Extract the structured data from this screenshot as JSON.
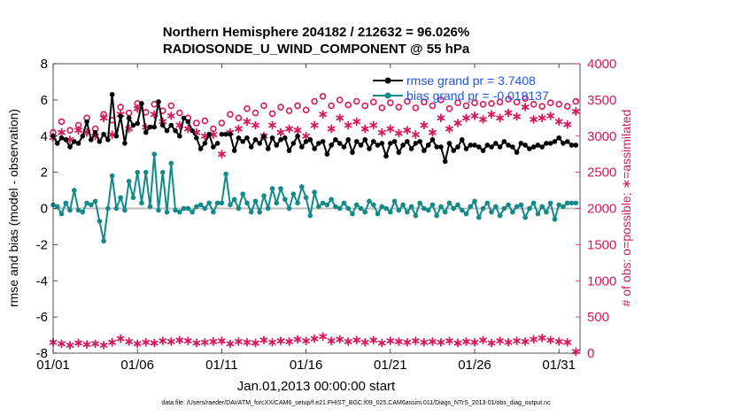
{
  "chart_data": {
    "type": "line",
    "title": "Northern Hemisphere 204182 / 212632 = 96.026%",
    "subtitle": "RADIOSONDE_U_WIND_COMPONENT @ 55 hPa",
    "xlabel": "Jan.01,2013 00:00:00 start",
    "ylabel": "rmse and bias (model - observation)",
    "y2label": "# of obs: o=possible; ∗=assimilated",
    "footer": "data file: /Users/raeder/DAI/ATM_forcXX/CAM6_setup/f.e21.FHIST_BGC.f09_025.CAM6assim.011/Diags_NTrS_2013-01/obs_diag_output.nc",
    "xlim": [
      0,
      31.25
    ],
    "ylim": [
      -8,
      8
    ],
    "y2lim": [
      0,
      4000
    ],
    "xticks": [
      0,
      5,
      10,
      15,
      20,
      25,
      30
    ],
    "xtick_labels": [
      "01/01",
      "01/06",
      "01/11",
      "01/16",
      "01/21",
      "01/26",
      "01/31"
    ],
    "yticks": [
      -8,
      -6,
      -4,
      -2,
      0,
      2,
      4,
      6,
      8
    ],
    "ytick_labels": [
      "-8",
      "-6",
      "-4",
      "-2",
      "0",
      "2",
      "4",
      "6",
      "8"
    ],
    "y2ticks": [
      0,
      500,
      1000,
      1500,
      2000,
      2500,
      3000,
      3500,
      4000
    ],
    "y2tick_labels": [
      "0",
      "500",
      "1000",
      "1500",
      "2000",
      "2500",
      "3000",
      "3500",
      "4000"
    ],
    "legend": [
      "rmse grand pr = 3.7408",
      "bias grand pr = -0.019137"
    ],
    "legend_position": "top-right",
    "colors": {
      "rmse": "#000000",
      "bias": "#138a8a",
      "obs": "#d6185f",
      "zero_line": "#bdbdbd",
      "legend_text": "#1f56e6"
    },
    "series": [
      {
        "name": "rmse",
        "segments": [
          {
            "x": [
              0,
              0.25,
              0.5,
              0.75,
              1,
              1.25,
              1.5,
              1.75,
              2,
              2.25,
              2.5,
              2.75,
              3,
              3.25,
              3.5,
              3.75,
              4,
              4.25,
              4.5,
              4.75,
              5,
              5.25,
              5.5,
              5.75,
              6,
              6.25,
              6.5,
              6.75,
              7,
              7.25,
              7.5,
              7.75,
              8,
              8.25,
              8.5,
              8.75,
              9,
              9.25,
              9.5,
              9.75
            ],
            "values": [
              4.0,
              3.6,
              3.9,
              3.8,
              3.4,
              3.7,
              3.6,
              4.0,
              4.8,
              3.8,
              4.2,
              3.7,
              4.1,
              3.8,
              6.3,
              4.0,
              5.1,
              3.6,
              5.0,
              4.6,
              4.7,
              5.8,
              4.2,
              4.5,
              4.5,
              5.9,
              4.6,
              4.3,
              4.6,
              4.3,
              4.0,
              5.0,
              4.8,
              4.3,
              3.9,
              3.3,
              3.6,
              4.1,
              3.4,
              3.6
            ]
          },
          {
            "x": [
              10,
              10.25,
              10.5,
              10.75,
              11,
              11.25,
              11.5,
              11.75,
              12,
              12.25,
              12.5,
              12.75,
              13,
              13.25,
              13.5,
              13.75,
              14,
              14.25,
              14.5,
              14.75,
              15,
              15.25,
              15.5,
              15.75,
              16,
              16.25,
              16.5,
              16.75,
              17,
              17.25,
              17.5,
              17.75,
              18,
              18.25,
              18.5,
              18.75,
              19,
              19.25,
              19.5,
              19.75,
              20,
              20.25,
              20.5,
              20.75,
              21,
              21.25,
              21.5,
              21.75,
              22,
              22.25,
              22.5,
              22.75,
              23,
              23.25,
              23.5,
              23.75,
              24,
              24.25,
              24.5,
              24.75,
              25,
              25.25,
              25.5,
              25.75,
              26,
              26.25,
              26.5,
              26.75,
              27,
              27.25,
              27.5,
              27.75,
              28,
              28.25,
              28.5,
              28.75,
              29,
              29.25,
              29.5,
              29.75,
              30,
              30.25,
              30.5,
              30.75,
              31
            ],
            "values": [
              4.1,
              4.1,
              4.1,
              3.2,
              3.9,
              3.7,
              3.9,
              3.4,
              3.8,
              3.6,
              4.0,
              3.3,
              3.9,
              3.5,
              3.8,
              3.9,
              3.2,
              3.6,
              4.0,
              3.4,
              3.7,
              3.8,
              3.3,
              3.6,
              3.7,
              3.0,
              3.5,
              3.8,
              3.6,
              3.4,
              3.8,
              3.1,
              3.7,
              3.5,
              3.8,
              3.3,
              3.7,
              3.5,
              3.6,
              2.9,
              3.6,
              3.7,
              3.1,
              3.5,
              3.7,
              3.3,
              3.6,
              3.7,
              3.2,
              3.5,
              3.8,
              3.4,
              3.4,
              2.6,
              3.6,
              3.2,
              3.4,
              3.8,
              3.3,
              3.5,
              3.5,
              3.4,
              3.2,
              3.5,
              3.4,
              3.6,
              3.4,
              3.7,
              3.5,
              3.4,
              3.1,
              3.6,
              3.5,
              3.3,
              3.4,
              3.5,
              3.4,
              3.6,
              3.6,
              3.7,
              3.9,
              3.6,
              3.7,
              3.5,
              3.5
            ]
          }
        ]
      },
      {
        "name": "bias",
        "segments": [
          {
            "x": [
              0,
              0.25,
              0.5,
              0.75,
              1,
              1.25,
              1.5,
              1.75,
              2,
              2.25,
              2.5,
              2.75,
              3,
              3.25,
              3.5,
              3.75,
              4,
              4.25,
              4.5,
              4.75,
              5,
              5.25,
              5.5,
              5.75,
              6,
              6.25,
              6.5,
              6.75,
              7,
              7.25,
              7.5,
              7.75,
              8,
              8.25,
              8.5,
              8.75,
              9,
              9.25,
              9.5,
              9.75
            ],
            "values": [
              0.2,
              0.1,
              -0.3,
              0.3,
              -0.1,
              1.0,
              -0.1,
              -0.2,
              0.3,
              0.2,
              0.4,
              -0.7,
              -1.8,
              0.0,
              1.8,
              0.0,
              0.6,
              -0.1,
              1.5,
              0.6,
              2.0,
              0.3,
              2.0,
              0.1,
              3.0,
              -0.1,
              2.0,
              -0.2,
              2.5,
              -0.1,
              -0.2,
              0.0,
              0.0,
              -0.2,
              0.1,
              0.2,
              0.0,
              0.3,
              -0.2,
              0.3
            ]
          },
          {
            "x": [
              10,
              10.25,
              10.5,
              10.75,
              11,
              11.25,
              11.5,
              11.75,
              12,
              12.25,
              12.5,
              12.75,
              13,
              13.25,
              13.5,
              13.75,
              14,
              14.25,
              14.5,
              14.75,
              15,
              15.25,
              15.5,
              15.75,
              16,
              16.25,
              16.5,
              16.75,
              17,
              17.25,
              17.5,
              17.75,
              18,
              18.25,
              18.5,
              18.75,
              19,
              19.25,
              19.5,
              19.75,
              20,
              20.25,
              20.5,
              20.75,
              21,
              21.25,
              21.5,
              21.75,
              22,
              22.25,
              22.5,
              22.75,
              23,
              23.25,
              23.5,
              23.75,
              24,
              24.25,
              24.5,
              24.75,
              25,
              25.25,
              25.5,
              25.75,
              26,
              26.25,
              26.5,
              26.75,
              27,
              27.25,
              27.5,
              27.75,
              28,
              28.25,
              28.5,
              28.75,
              29,
              29.25,
              29.5,
              29.75,
              30,
              30.25,
              30.5,
              30.75,
              31
            ],
            "values": [
              0.3,
              1.9,
              0.2,
              0.5,
              0.0,
              0.8,
              0.3,
              -0.2,
              0.4,
              -0.2,
              0.7,
              0.0,
              1.1,
              0.3,
              1.1,
              0.5,
              0.0,
              0.8,
              0.3,
              1.2,
              0.6,
              -0.4,
              0.9,
              0.1,
              0.3,
              0.2,
              0.5,
              0.1,
              0.0,
              0.3,
              0.0,
              -0.3,
              0.2,
              0.0,
              -0.2,
              0.4,
              0.2,
              -0.3,
              0.1,
              0.0,
              -0.2,
              0.4,
              -0.1,
              0.2,
              -0.2,
              0.1,
              -0.4,
              0.3,
              0.0,
              -0.1,
              0.2,
              -0.4,
              0.1,
              -0.2,
              0.3,
              0.0,
              0.2,
              -0.1,
              -0.3,
              0.1,
              0.4,
              -0.5,
              0.0,
              0.3,
              -0.2,
              0.1,
              -0.4,
              0.0,
              0.2,
              -0.2,
              0.1,
              0.2,
              -0.5,
              0.0,
              0.3,
              -0.3,
              0.1,
              -0.2,
              0.3,
              -0.6,
              0.2,
              0.1,
              0.3,
              0.3,
              0.3
            ]
          }
        ]
      },
      {
        "name": "obs possible",
        "axis": "right",
        "x": [
          0,
          0.5,
          1,
          1.5,
          2,
          2.5,
          3,
          3.5,
          4,
          4.5,
          5,
          5.5,
          6,
          6.5,
          7,
          7.5,
          8,
          8.5,
          9,
          9.5,
          10,
          10.5,
          11,
          11.5,
          12,
          12.5,
          13,
          13.5,
          14,
          14.5,
          15,
          15.5,
          16,
          16.5,
          17,
          17.5,
          18,
          18.5,
          19,
          19.5,
          20,
          20.5,
          21,
          21.5,
          22,
          22.5,
          23,
          23.5,
          24,
          24.5,
          25,
          25.5,
          26,
          26.5,
          27,
          27.5,
          28,
          28.5,
          29,
          29.5,
          30,
          30.5,
          31
        ],
        "values": [
          3050,
          3200,
          3080,
          3150,
          3250,
          3100,
          3300,
          3220,
          3400,
          3320,
          3450,
          3330,
          3440,
          3350,
          3420,
          3320,
          3250,
          3180,
          3210,
          3100,
          3180,
          3300,
          3250,
          3380,
          3320,
          3420,
          3310,
          3400,
          3350,
          3420,
          3360,
          3480,
          3550,
          3420,
          3500,
          3430,
          3480,
          3420,
          3470,
          3390,
          3460,
          3400,
          3480,
          3390,
          3470,
          3420,
          3500,
          3380,
          3460,
          3420,
          3460,
          3440,
          3450,
          3470,
          3510,
          3470,
          3520,
          3440,
          3410,
          3460,
          3440,
          3410,
          3480
        ]
      },
      {
        "name": "obs assimilated",
        "axis": "right",
        "x": [
          0,
          0.5,
          1,
          1.5,
          2,
          2.5,
          3,
          3.5,
          4,
          4.5,
          5,
          5.5,
          6,
          6.5,
          7,
          7.5,
          8,
          8.5,
          9,
          9.5,
          10,
          10.5,
          11,
          11.5,
          12,
          12.5,
          13,
          13.5,
          14,
          14.5,
          15,
          15.5,
          16,
          16.5,
          17,
          17.5,
          18,
          18.5,
          19,
          19.5,
          20,
          20.5,
          21,
          21.5,
          22,
          22.5,
          23,
          23.5,
          24,
          24.5,
          25,
          25.5,
          26,
          26.5,
          27,
          27.5,
          28,
          28.5,
          29,
          29.5,
          30,
          30.5,
          31
        ],
        "values": [
          2980,
          3050,
          2950,
          3080,
          3050,
          3000,
          3250,
          3020,
          3300,
          3100,
          3380,
          3120,
          3300,
          3200,
          3280,
          3150,
          3100,
          3050,
          3000,
          3020,
          2750,
          3050,
          3100,
          3200,
          3150,
          3000,
          3150,
          3050,
          3100,
          3080,
          3000,
          3150,
          3300,
          3100,
          3250,
          3150,
          3200,
          3100,
          3150,
          3050,
          3100,
          3040,
          3080,
          3020,
          3150,
          3050,
          3250,
          3100,
          3180,
          3250,
          3280,
          3230,
          3300,
          3250,
          3320,
          3270,
          3400,
          3230,
          3250,
          3280,
          3200,
          3160,
          3340
        ]
      },
      {
        "name": "obs bottom",
        "axis": "right",
        "x": [
          0,
          0.5,
          1,
          1.5,
          2,
          2.5,
          3,
          3.5,
          4,
          4.5,
          5,
          5.5,
          6,
          6.5,
          7,
          7.5,
          8,
          8.5,
          9,
          9.5,
          10,
          10.5,
          11,
          11.5,
          12,
          12.5,
          13,
          13.5,
          14,
          14.5,
          15,
          15.5,
          16,
          16.5,
          17,
          17.5,
          18,
          18.5,
          19,
          19.5,
          20,
          20.5,
          21,
          21.5,
          22,
          22.5,
          23,
          23.5,
          24,
          24.5,
          25,
          25.5,
          26,
          26.5,
          27,
          27.5,
          28,
          28.5,
          29,
          29.5,
          30,
          30.5,
          31
        ],
        "values": [
          150,
          130,
          110,
          140,
          120,
          130,
          110,
          150,
          200,
          160,
          130,
          150,
          140,
          170,
          160,
          180,
          170,
          140,
          150,
          160,
          170,
          130,
          160,
          150,
          140,
          180,
          150,
          170,
          160,
          190,
          170,
          200,
          230,
          170,
          190,
          160,
          180,
          150,
          180,
          140,
          170,
          160,
          150,
          170,
          150,
          160,
          150,
          170,
          140,
          160,
          150,
          180,
          140,
          170,
          150,
          170,
          160,
          190,
          210,
          180,
          160,
          150,
          20
        ]
      }
    ]
  }
}
